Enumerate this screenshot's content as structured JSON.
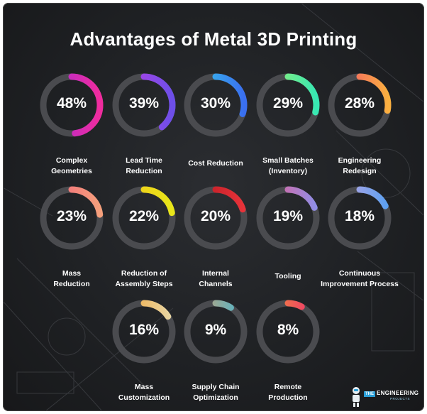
{
  "chart_data": {
    "type": "donut",
    "title": "Advantages of Metal 3D Printing",
    "unit": "%",
    "max": 100,
    "items": [
      {
        "label_lines": [
          "Complex",
          "Geometries"
        ],
        "value": 48,
        "display": "48%",
        "colors": [
          "#a62bd8",
          "#f02c9e"
        ]
      },
      {
        "label_lines": [
          "Lead Time",
          "Reduction"
        ],
        "value": 39,
        "display": "39%",
        "colors": [
          "#c23ee6",
          "#6d4fe8"
        ]
      },
      {
        "label_lines": [
          "Cost Reduction"
        ],
        "value": 30,
        "display": "30%",
        "colors": [
          "#36d2ea",
          "#3a6ff0"
        ]
      },
      {
        "label_lines": [
          "Small Batches",
          "(Inventory)"
        ],
        "value": 29,
        "display": "29%",
        "colors": [
          "#a7f06a",
          "#37e8b3"
        ]
      },
      {
        "label_lines": [
          "Engineering",
          "Redesign"
        ],
        "value": 28,
        "display": "28%",
        "colors": [
          "#f04a6e",
          "#fbb040"
        ]
      },
      {
        "label_lines": [
          "Mass",
          "Reduction"
        ],
        "value": 23,
        "display": "23%",
        "colors": [
          "#f0607a",
          "#f5a07c"
        ]
      },
      {
        "label_lines": [
          "Reduction of",
          "Assembly Steps"
        ],
        "value": 22,
        "display": "22%",
        "colors": [
          "#f3c41a",
          "#e8e61a"
        ]
      },
      {
        "label_lines": [
          "Internal",
          "Channels"
        ],
        "value": 20,
        "display": "20%",
        "colors": [
          "#b3161f",
          "#e8333a"
        ]
      },
      {
        "label_lines": [
          "Tooling"
        ],
        "value": 19,
        "display": "19%",
        "colors": [
          "#f05a8a",
          "#8f8fe8"
        ]
      },
      {
        "label_lines": [
          "Continuous",
          "Improvement Process"
        ],
        "value": 18,
        "display": "18%",
        "colors": [
          "#cfa6e0",
          "#5aa0f0"
        ]
      },
      {
        "label_lines": [
          "Mass",
          "Customization"
        ],
        "value": 16,
        "display": "16%",
        "colors": [
          "#f0a030",
          "#e8d8a8"
        ]
      },
      {
        "label_lines": [
          "Supply Chain",
          "Optimization"
        ],
        "value": 9,
        "display": "9%",
        "colors": [
          "#e09a60",
          "#4ab8d0"
        ]
      },
      {
        "label_lines": [
          "Remote",
          "Production"
        ],
        "value": 8,
        "display": "8%",
        "colors": [
          "#f0a030",
          "#f03070"
        ]
      }
    ]
  },
  "logo": {
    "the": "THE",
    "engineering": "ENGINEERING",
    "projects": "PROJECTS"
  },
  "colors": {
    "track": "#4a4b4f",
    "background": "#212326",
    "text": "#ffffff"
  }
}
